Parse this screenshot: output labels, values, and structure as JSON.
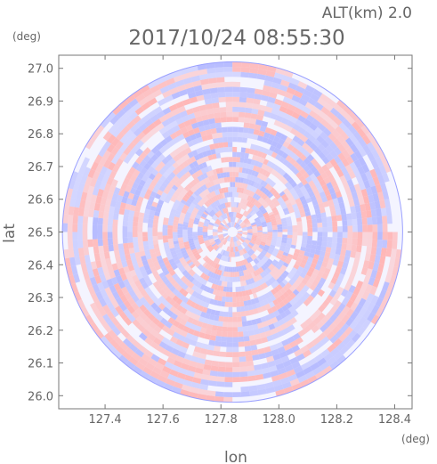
{
  "header": {
    "alt_label": "ALT(km)  2.0",
    "timestamp": "2017/10/24 08:55:30",
    "y_unit": "(deg)",
    "x_unit": "(deg)"
  },
  "chart_data": {
    "type": "heatmap",
    "xlabel": "lon",
    "ylabel": "lat",
    "xlim": [
      127.24,
      128.46
    ],
    "ylim": [
      25.96,
      27.04
    ],
    "x_ticks": [
      "127.4",
      "127.6",
      "127.8",
      "128.0",
      "128.2",
      "128.4"
    ],
    "y_ticks": [
      "26.0",
      "26.1",
      "26.2",
      "26.3",
      "26.4",
      "26.5",
      "26.6",
      "26.7",
      "26.8",
      "26.9",
      "27.0"
    ],
    "center": {
      "lon": 127.84,
      "lat": 26.5
    },
    "radius_deg": 0.52,
    "colors": {
      "positive": "#ffb3b3",
      "negative": "#b3b8ff",
      "neutral": "#ffffff"
    },
    "grid": false
  }
}
